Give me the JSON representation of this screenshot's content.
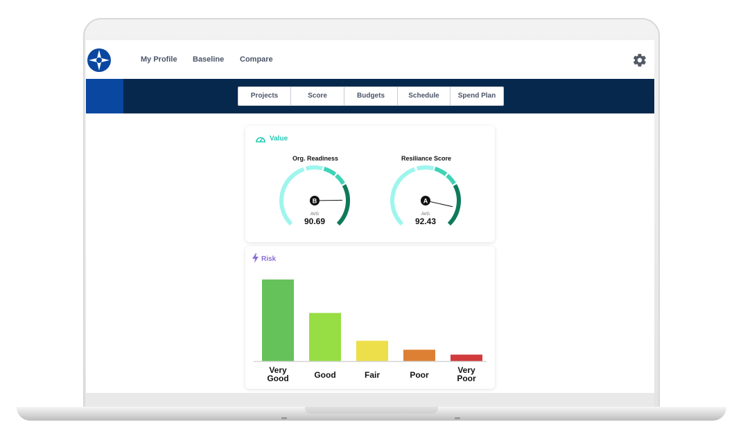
{
  "nav": {
    "links": [
      "My Profile",
      "Baseline",
      "Compare"
    ]
  },
  "tabs": [
    "Projects",
    "Score",
    "Budgets",
    "Schedule",
    "Spend Plan"
  ],
  "value_card": {
    "title": "Value",
    "title_color": "#22c9b4",
    "gauges": [
      {
        "title": "Org. Readiness",
        "grade": "B",
        "avg_label": "AVG",
        "avg": "90.69",
        "needle_value": 0.83
      },
      {
        "title": "Resiliance Score",
        "grade": "A",
        "avg_label": "AVG",
        "avg": "92.43",
        "needle_value": 0.88
      }
    ]
  },
  "risk_card": {
    "title": "Risk",
    "title_color": "#8b6fd6"
  },
  "chart_data": {
    "type": "bar",
    "categories": [
      "Very Good",
      "Good",
      "Fair",
      "Poor",
      "Very Poor"
    ],
    "values": [
      100,
      59,
      25,
      14,
      8
    ],
    "colors": [
      "#65c25a",
      "#97de44",
      "#ecdf4a",
      "#dd8033",
      "#d13b3b"
    ],
    "title": "",
    "xlabel": "",
    "ylabel": "",
    "ylim": [
      0,
      100
    ],
    "grid": false
  },
  "colors": {
    "brand_navy": "#06284d",
    "brand_blue": "#0a47a0",
    "gauge_light": "#9ef5ee",
    "gauge_mid": "#3fd3b6",
    "gauge_dark": "#0e7a5a"
  }
}
